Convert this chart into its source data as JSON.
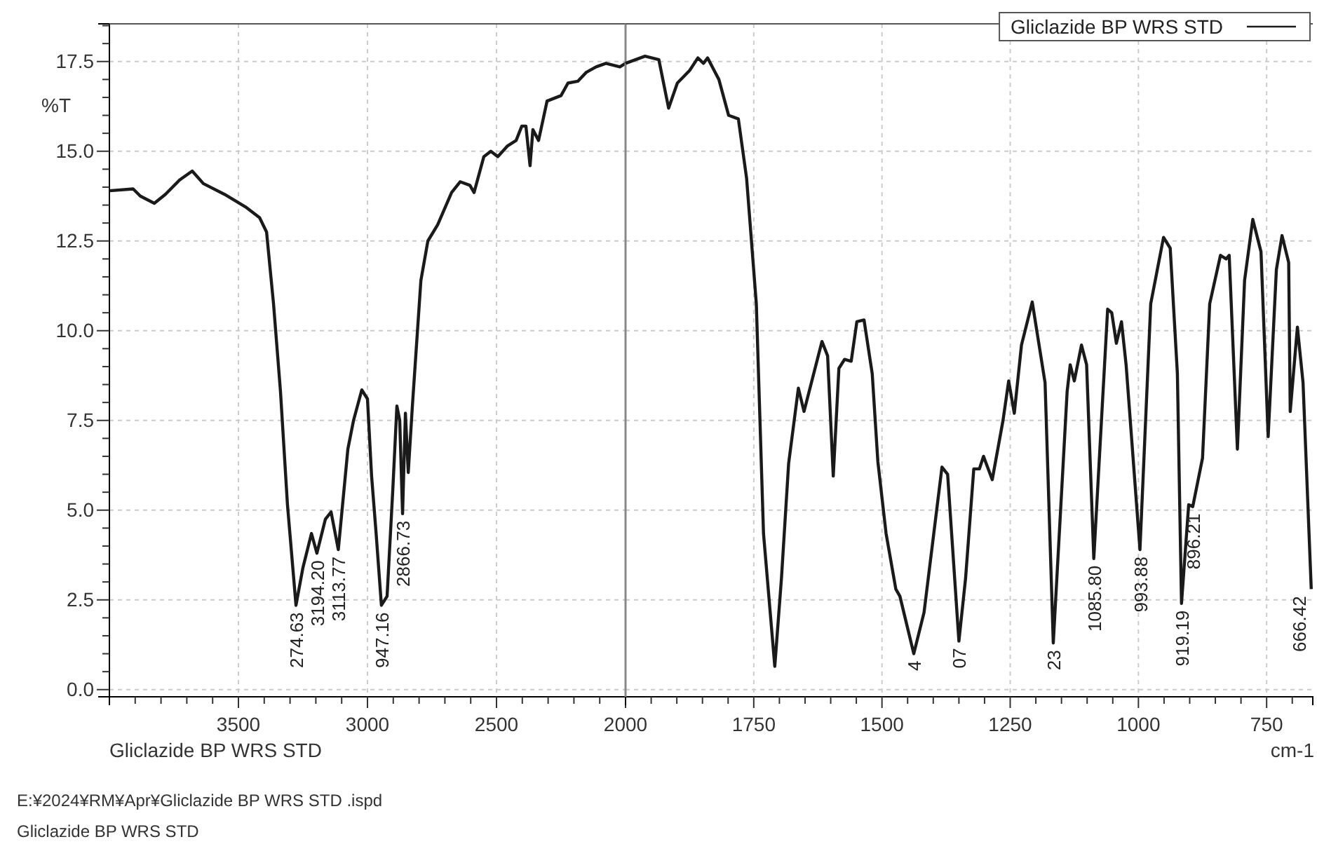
{
  "chart_data": [
    {
      "type": "line",
      "subtitle": "Gliclazide BP WRS STD",
      "ylabel": "%T",
      "x": [
        4000,
        3908,
        3880,
        3826,
        3783,
        3728,
        3679,
        3636,
        3554,
        3473,
        3418,
        3391,
        3364,
        3337,
        3310,
        3277,
        3250,
        3217,
        3196,
        3163,
        3141,
        3113,
        3076,
        3054,
        3022,
        3000,
        2984,
        2967,
        2946,
        2924,
        2902,
        2886,
        2875,
        2864,
        2853,
        2842,
        2826,
        2793,
        2766,
        2728,
        2674,
        2641,
        2603,
        2587,
        2549,
        2522,
        2495,
        2457,
        2424,
        2402,
        2386,
        2370,
        2359,
        2337,
        2304,
        2250,
        2223,
        2185,
        2152,
        2114,
        2076,
        2022,
        2000
      ],
      "series": [
        {
          "color": "#1a1a1a",
          "values": [
            13.9,
            13.95,
            13.75,
            13.55,
            13.8,
            14.2,
            14.45,
            14.1,
            13.8,
            13.45,
            13.15,
            12.75,
            10.75,
            8.3,
            5.15,
            2.35,
            3.4,
            4.35,
            3.8,
            4.75,
            4.95,
            3.9,
            6.7,
            7.5,
            8.35,
            8.1,
            5.95,
            4.4,
            2.35,
            2.6,
            5.55,
            7.9,
            7.5,
            4.9,
            7.7,
            6.05,
            7.9,
            11.4,
            12.5,
            12.95,
            13.85,
            14.15,
            14.05,
            13.85,
            14.85,
            15.0,
            14.85,
            15.15,
            15.3,
            15.7,
            15.7,
            14.6,
            15.6,
            15.3,
            16.4,
            16.55,
            16.9,
            16.95,
            17.2,
            17.35,
            17.45,
            17.35,
            17.45
          ]
        }
      ],
      "xlim": [
        4000,
        2000
      ],
      "ylim": [
        -0.2,
        18.55
      ],
      "xticks": [
        {
          "value": 3900,
          "label": null
        },
        {
          "value": 3800,
          "label": null
        },
        {
          "value": 3700,
          "label": null
        },
        {
          "value": 3600,
          "label": null
        },
        3500,
        {
          "value": 3400,
          "label": null
        },
        {
          "value": 3300,
          "label": null
        },
        {
          "value": 3200,
          "label": null
        },
        {
          "value": 3100,
          "label": null
        },
        3000,
        {
          "value": 2900,
          "label": null
        },
        {
          "value": 2800,
          "label": null
        },
        {
          "value": 2700,
          "label": null
        },
        {
          "value": 2600,
          "label": null
        },
        2500,
        {
          "value": 2400,
          "label": null
        },
        {
          "value": 2300,
          "label": null
        },
        {
          "value": 2200,
          "label": null
        },
        {
          "value": 2100,
          "label": null
        },
        2000
      ],
      "yticks": [
        {
          "value": 0,
          "label": "0.0"
        },
        {
          "value": 0.5,
          "label": null
        },
        {
          "value": 1,
          "label": null
        },
        {
          "value": 1.5,
          "label": null
        },
        {
          "value": 2,
          "label": null
        },
        2.5,
        {
          "value": 3,
          "label": null
        },
        {
          "value": 3.5,
          "label": null
        },
        {
          "value": 4,
          "label": null
        },
        {
          "value": 4.5,
          "label": null
        },
        {
          "value": 5,
          "label": "5.0"
        },
        {
          "value": 5.5,
          "label": null
        },
        {
          "value": 6,
          "label": null
        },
        {
          "value": 6.5,
          "label": null
        },
        {
          "value": 7,
          "label": null
        },
        7.5,
        {
          "value": 8,
          "label": null
        },
        {
          "value": 8.5,
          "label": null
        },
        {
          "value": 9,
          "label": null
        },
        {
          "value": 9.5,
          "label": null
        },
        {
          "value": 10,
          "label": "10.0"
        },
        {
          "value": 10.5,
          "label": null
        },
        {
          "value": 11,
          "label": null
        },
        {
          "value": 11.5,
          "label": null
        },
        {
          "value": 12,
          "label": null
        },
        12.5,
        {
          "value": 13,
          "label": null
        },
        {
          "value": 13.5,
          "label": null
        },
        {
          "value": 14,
          "label": null
        },
        {
          "value": 14.5,
          "label": null
        },
        {
          "value": 15,
          "label": "15.0"
        },
        {
          "value": 15.5,
          "label": null
        },
        {
          "value": 16,
          "label": null
        },
        {
          "value": 16.5,
          "label": null
        },
        {
          "value": 17,
          "label": null
        },
        17.5,
        {
          "value": 18,
          "label": null
        },
        {
          "value": 18.5,
          "label": null
        }
      ],
      "grid": true,
      "line_style": "solid",
      "annotations": [
        {
          "text": "274.63",
          "x": 3277,
          "y": 2.35
        },
        {
          "text": "3194.20",
          "x": 3196,
          "y": 3.8
        },
        {
          "text": "3113.77",
          "x": 3113,
          "y": 3.9
        },
        {
          "text": "947.16",
          "x": 2946,
          "y": 2.35
        },
        {
          "text": "2866.73",
          "x": 2864,
          "y": 4.9
        },
        "E:¥2024¥RM¥Apr¥Gliclazide BP WRS STD .ispd",
        "Gliclazide BP WRS STD"
      ]
    },
    {
      "type": "line",
      "xlabel": "cm-1",
      "x": [
        2000,
        1962,
        1935,
        1916,
        1899,
        1875,
        1859,
        1848,
        1840,
        1818,
        1799,
        1780,
        1764,
        1745,
        1731,
        1709,
        1696,
        1682,
        1663,
        1652,
        1617,
        1606,
        1595,
        1584,
        1573,
        1560,
        1549,
        1535,
        1519,
        1508,
        1492,
        1473,
        1465,
        1438,
        1418,
        1383,
        1372,
        1350,
        1337,
        1321,
        1310,
        1302,
        1285,
        1264,
        1253,
        1242,
        1228,
        1207,
        1182,
        1166,
        1139,
        1133,
        1125,
        1111,
        1101,
        1087,
        1060,
        1052,
        1043,
        1033,
        1024,
        997,
        976,
        951,
        938,
        924,
        916,
        902,
        894,
        875,
        861,
        840,
        829,
        823,
        807,
        793,
        777,
        761,
        747,
        731,
        720,
        707,
        704,
        690,
        679,
        663
      ],
      "series": [
        {
          "name": "Gliclazide BP WRS STD",
          "color": "#1a1a1a",
          "values": [
            17.45,
            17.65,
            17.55,
            16.2,
            16.9,
            17.25,
            17.6,
            17.45,
            17.6,
            17.0,
            16.0,
            15.9,
            14.25,
            10.75,
            4.35,
            0.65,
            3.1,
            6.3,
            8.4,
            7.75,
            9.7,
            9.3,
            5.95,
            8.95,
            9.2,
            9.15,
            10.25,
            10.3,
            8.8,
            6.35,
            4.35,
            2.8,
            2.6,
            1.0,
            2.15,
            6.2,
            6.0,
            1.35,
            3.1,
            6.15,
            6.15,
            6.5,
            5.85,
            7.5,
            8.6,
            7.7,
            9.6,
            10.8,
            8.55,
            1.3,
            8.3,
            9.05,
            8.6,
            9.6,
            9.05,
            3.65,
            10.6,
            10.5,
            9.65,
            10.25,
            9.05,
            3.9,
            10.75,
            12.6,
            12.3,
            8.8,
            2.4,
            5.15,
            5.1,
            6.45,
            10.75,
            12.1,
            12.0,
            12.1,
            6.7,
            11.4,
            13.1,
            12.2,
            7.05,
            11.7,
            12.65,
            11.9,
            7.75,
            10.1,
            8.55,
            2.8
          ]
        }
      ],
      "xlim": [
        2000,
        660
      ],
      "ylim": [
        -0.2,
        18.55
      ],
      "xticks": [
        {
          "value": 1950,
          "label": null
        },
        {
          "value": 1900,
          "label": null
        },
        {
          "value": 1850,
          "label": null
        },
        {
          "value": 1800,
          "label": null
        },
        1750,
        {
          "value": 1700,
          "label": null
        },
        {
          "value": 1650,
          "label": null
        },
        {
          "value": 1600,
          "label": null
        },
        {
          "value": 1550,
          "label": null
        },
        1500,
        {
          "value": 1450,
          "label": null
        },
        {
          "value": 1400,
          "label": null
        },
        {
          "value": 1350,
          "label": null
        },
        {
          "value": 1300,
          "label": null
        },
        1250,
        {
          "value": 1200,
          "label": null
        },
        {
          "value": 1150,
          "label": null
        },
        {
          "value": 1100,
          "label": null
        },
        {
          "value": 1050,
          "label": null
        },
        1000,
        {
          "value": 950,
          "label": null
        },
        {
          "value": 900,
          "label": null
        },
        {
          "value": 850,
          "label": null
        },
        {
          "value": 800,
          "label": null
        },
        750,
        {
          "value": 700,
          "label": null
        }
      ],
      "yticks": [
        0,
        2.5,
        5,
        7.5,
        10,
        12.5,
        15,
        17.5
      ],
      "tick_labels": "x",
      "grid": true,
      "legend": "top right",
      "line_style": "solid",
      "annotations": [
        {
          "text": "4",
          "x": 1438,
          "y": 1.0
        },
        {
          "text": "07",
          "x": 1350,
          "y": 1.35
        },
        {
          "text": "23",
          "x": 1166,
          "y": 1.3
        },
        {
          "text": "1085.80",
          "x": 1087,
          "y": 3.65
        },
        {
          "text": "993.88",
          "x": 997,
          "y": 3.9
        },
        {
          "text": "919.19",
          "x": 916,
          "y": 2.4
        },
        {
          "text": "896.21",
          "x": 894,
          "y": 5.1
        },
        {
          "text": "666.42",
          "x": 663,
          "y": 2.8
        }
      ]
    }
  ]
}
